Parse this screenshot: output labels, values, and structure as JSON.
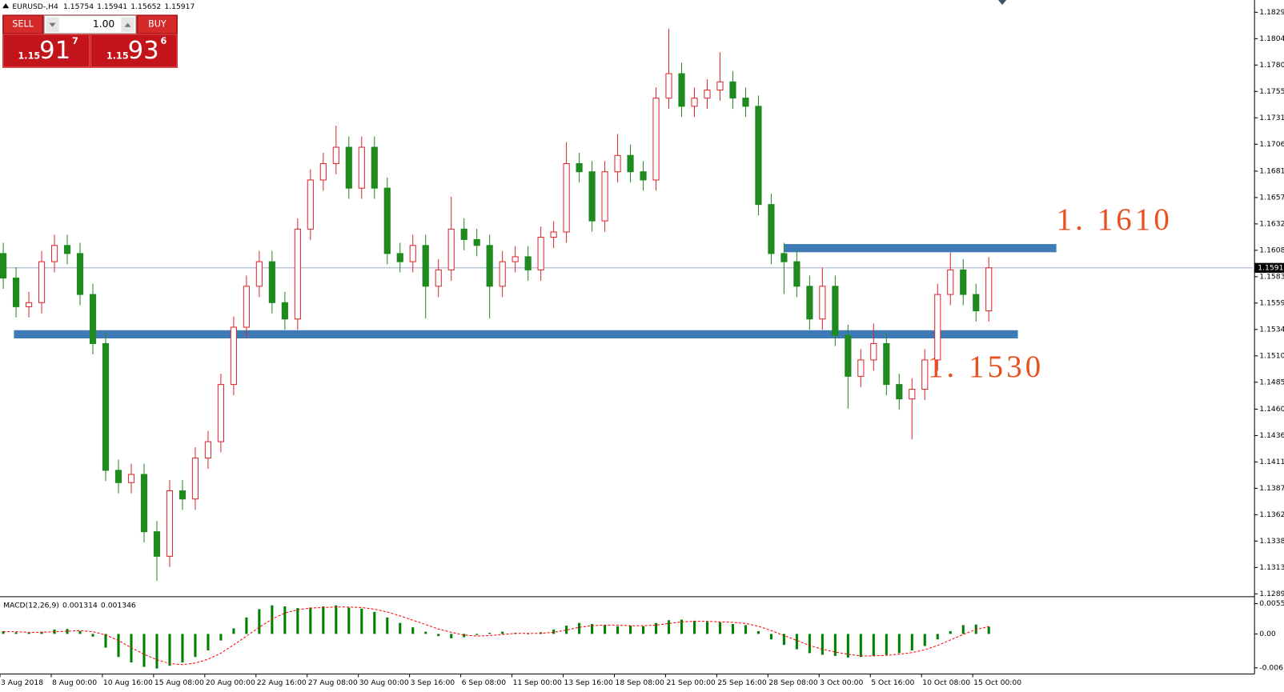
{
  "header": {
    "symbol": "EURUSD-,H4",
    "open": 1.15754,
    "high": 1.15941,
    "low": 1.15652,
    "close": 1.15917
  },
  "trade_panel": {
    "sell": "SELL",
    "buy": "BUY",
    "volume": "1.00",
    "bid": {
      "big_figure": "1.15",
      "pips": "91",
      "fraction": "7"
    },
    "ask": {
      "big_figure": "1.15",
      "pips": "93",
      "fraction": "6"
    }
  },
  "chart_data": [
    {
      "type": "candlestick",
      "categories": [
        "3 Aug 2018",
        null,
        null,
        null,
        "8 Aug 00:00",
        null,
        null,
        null,
        "10 Aug 16:00",
        null,
        null,
        null,
        "15 Aug 08:00",
        null,
        null,
        null,
        "20 Aug 00:00",
        null,
        null,
        null,
        "22 Aug 16:00",
        null,
        null,
        null,
        "27 Aug 08:00",
        null,
        null,
        null,
        "30 Aug 00:00",
        null,
        null,
        null,
        "3 Sep 16:00",
        null,
        null,
        null,
        "6 Sep 08:00",
        null,
        null,
        null,
        "11 Sep 00:00",
        null,
        null,
        null,
        "13 Sep 16:00",
        null,
        null,
        null,
        "18 Sep 08:00",
        null,
        null,
        null,
        "21 Sep 00:00",
        null,
        null,
        null,
        "25 Sep 16:00",
        null,
        null,
        null,
        "28 Sep 08:00",
        null,
        null,
        null,
        "3 Oct 00:00",
        null,
        null,
        null,
        "5 Oct 16:00",
        null,
        null,
        null,
        "10 Oct 08:00",
        null,
        null,
        null,
        "15 Oct 00:00",
        null
      ],
      "open": [
        1.1605,
        1.15822,
        1.15556,
        1.15594,
        1.15974,
        1.16125,
        1.1605,
        1.1567,
        1.15214,
        1.14037,
        1.13923,
        1.13999,
        1.13467,
        1.13239,
        1.13847,
        1.13771,
        1.14151,
        1.14303,
        1.14834,
        1.15366,
        1.15746,
        1.15974,
        1.15594,
        1.15442,
        1.16277,
        1.16733,
        1.16885,
        1.17037,
        1.16657,
        1.17037,
        1.16657,
        1.1605,
        1.15974,
        1.16125,
        1.15746,
        1.15898,
        1.16277,
        1.1618,
        1.16125,
        1.15746,
        1.15974,
        1.1602,
        1.15898,
        1.16201,
        1.1625,
        1.16885,
        1.16809,
        1.16353,
        1.16809,
        1.16961,
        1.16809,
        1.16733,
        1.17493,
        1.1772,
        1.17417,
        1.17493,
        1.17568,
        1.17644,
        1.17493,
        1.17417,
        1.16505,
        1.1605,
        1.15974,
        1.15746,
        1.15442,
        1.15746,
        1.1529,
        1.1491,
        1.15062,
        1.15214,
        1.14834,
        1.147,
        1.1479,
        1.15062,
        1.1567,
        1.15898,
        1.1567,
        1.15518
      ],
      "high": [
        1.1615,
        1.15922,
        1.15694,
        1.16074,
        1.16225,
        1.16225,
        1.1615,
        1.1577,
        1.15314,
        1.14137,
        1.14099,
        1.14099,
        1.13567,
        1.13947,
        1.13947,
        1.14251,
        1.14403,
        1.14934,
        1.15466,
        1.15846,
        1.16074,
        1.16074,
        1.15694,
        1.16377,
        1.16833,
        1.16985,
        1.17237,
        1.17137,
        1.17137,
        1.17137,
        1.16757,
        1.1615,
        1.16225,
        1.16225,
        1.15998,
        1.16577,
        1.16377,
        1.1628,
        1.16225,
        1.16074,
        1.1612,
        1.1612,
        1.16301,
        1.1635,
        1.17085,
        1.16985,
        1.16909,
        1.16909,
        1.17161,
        1.17061,
        1.16909,
        1.17593,
        1.18138,
        1.1782,
        1.17593,
        1.17668,
        1.1792,
        1.17744,
        1.17593,
        1.17517,
        1.16605,
        1.1615,
        1.16074,
        1.15846,
        1.1592,
        1.15846,
        1.1539,
        1.15162,
        1.154,
        1.15314,
        1.14934,
        1.1489,
        1.15162,
        1.1577,
        1.1606,
        1.15998,
        1.1577,
        1.16017
      ],
      "low": [
        1.15722,
        1.15456,
        1.15456,
        1.15494,
        1.15874,
        1.1595,
        1.1557,
        1.15114,
        1.13937,
        1.13823,
        1.13823,
        1.13367,
        1.13011,
        1.13139,
        1.13671,
        1.13671,
        1.14051,
        1.14203,
        1.14734,
        1.15266,
        1.15646,
        1.15494,
        1.15342,
        1.15342,
        1.16177,
        1.16633,
        1.16785,
        1.16557,
        1.16557,
        1.16557,
        1.1595,
        1.15874,
        1.15874,
        1.15446,
        1.15646,
        1.15798,
        1.1608,
        1.16025,
        1.15446,
        1.15646,
        1.15874,
        1.15798,
        1.15798,
        1.16101,
        1.1615,
        1.16709,
        1.16253,
        1.16253,
        1.16709,
        1.16709,
        1.16633,
        1.16633,
        1.17393,
        1.17317,
        1.17317,
        1.17393,
        1.17468,
        1.17393,
        1.17317,
        1.16405,
        1.1595,
        1.15674,
        1.15646,
        1.15342,
        1.15342,
        1.1519,
        1.1461,
        1.1481,
        1.14962,
        1.14734,
        1.146,
        1.14325,
        1.1469,
        1.14962,
        1.1557,
        1.1557,
        1.15418,
        1.15418
      ],
      "close": [
        1.15822,
        1.15556,
        1.15594,
        1.15974,
        1.16125,
        1.1605,
        1.1567,
        1.15214,
        1.14037,
        1.13923,
        1.13999,
        1.13467,
        1.13239,
        1.13847,
        1.13771,
        1.14151,
        1.14303,
        1.14834,
        1.15366,
        1.15746,
        1.15974,
        1.15594,
        1.15442,
        1.16277,
        1.16733,
        1.16885,
        1.17037,
        1.16657,
        1.17037,
        1.16657,
        1.1605,
        1.15974,
        1.16125,
        1.15746,
        1.15898,
        1.16277,
        1.1618,
        1.16125,
        1.15746,
        1.15974,
        1.1602,
        1.15898,
        1.16201,
        1.1625,
        1.16885,
        1.16809,
        1.16353,
        1.16809,
        1.16961,
        1.16809,
        1.16733,
        1.17493,
        1.1772,
        1.17417,
        1.17493,
        1.17568,
        1.17644,
        1.17493,
        1.17417,
        1.16505,
        1.1605,
        1.15974,
        1.15746,
        1.15442,
        1.15746,
        1.1529,
        1.1491,
        1.15062,
        1.15214,
        1.14834,
        1.147,
        1.1479,
        1.15062,
        1.1567,
        1.15898,
        1.1567,
        1.15518,
        1.15917
      ],
      "up_color": "#e0242b",
      "down_color": "#1f8a1f",
      "ylim": [
        1.12875,
        1.18404
      ],
      "yticks": [
        {
          "value": 1.1829,
          "label": "1.18290"
        },
        1.18045,
        {
          "value": 1.178,
          "label": "1.17800"
        },
        1.17555,
        {
          "value": 1.1731,
          "label": "1.17310"
        },
        1.17065,
        1.16815,
        {
          "value": 1.1657,
          "label": "1.16570"
        },
        1.16325,
        {
          "value": 1.1608,
          "label": "1.16080"
        },
        1.15835,
        {
          "value": 1.1559,
          "label": "1.15590"
        },
        1.15345,
        {
          "value": 1.151,
          "label": "1.15100"
        },
        1.14855,
        1.14605,
        {
          "value": 1.1436,
          "label": "1.14360"
        },
        1.14115,
        {
          "value": 1.1387,
          "label": "1.13870"
        },
        1.13625,
        {
          "value": 1.1338,
          "label": "1.13380"
        },
        1.13135,
        {
          "value": 1.1289,
          "label": "1.12890"
        }
      ],
      "current_price": 1.15917,
      "levels": [
        {
          "value": 1.161,
          "label": "1. 1610"
        },
        {
          "value": 1.153,
          "label": "1. 1530"
        }
      ],
      "level_color": "#3e7bb6"
    },
    {
      "type": "macd",
      "title": "MACD(12,26,9)",
      "macd": [
        0.0005,
        0.0003,
        0.0002,
        0.0004,
        0.0008,
        0.0009,
        0.0005,
        -0.0005,
        -0.0025,
        -0.0042,
        -0.0052,
        -0.006,
        -0.0063,
        -0.0058,
        -0.0052,
        -0.0042,
        -0.003,
        -0.0012,
        0.001,
        0.003,
        0.0045,
        0.0052,
        0.005,
        0.0047,
        0.0048,
        0.005,
        0.0052,
        0.0048,
        0.0046,
        0.004,
        0.003,
        0.002,
        0.0012,
        0.0004,
        -0.0004,
        -0.0008,
        -0.0006,
        -0.0002,
        0.0002,
        0.0004,
        0.0002,
        0.0,
        0.0003,
        0.0008,
        0.0015,
        0.002,
        0.0018,
        0.0016,
        0.0014,
        0.0015,
        0.0014,
        0.002,
        0.0025,
        0.0026,
        0.0024,
        0.0022,
        0.0021,
        0.0018,
        0.0016,
        0.0005,
        -0.001,
        -0.002,
        -0.0028,
        -0.0035,
        -0.0038,
        -0.004,
        -0.0043,
        -0.0042,
        -0.004,
        -0.0038,
        -0.0035,
        -0.003,
        -0.0022,
        -0.001,
        0.0005,
        0.0016,
        0.0017,
        0.001314
      ],
      "signal": [
        0.0004,
        0.0004,
        0.0003,
        0.0003,
        0.0004,
        0.0005,
        0.0006,
        0.0004,
        -0.0002,
        -0.0012,
        -0.0025,
        -0.0037,
        -0.0047,
        -0.0054,
        -0.0056,
        -0.0053,
        -0.0046,
        -0.0035,
        -0.002,
        -0.0004,
        0.0012,
        0.0027,
        0.0038,
        0.0044,
        0.0047,
        0.0048,
        0.0049,
        0.0049,
        0.0048,
        0.0045,
        0.004,
        0.0033,
        0.0025,
        0.0017,
        0.0009,
        0.0003,
        -0.0002,
        -0.0004,
        -0.0003,
        -0.0001,
        0.0001,
        0.0001,
        0.0001,
        0.0003,
        0.0007,
        0.0012,
        0.0015,
        0.0016,
        0.0016,
        0.0015,
        0.0015,
        0.0016,
        0.0019,
        0.0022,
        0.0023,
        0.0023,
        0.0022,
        0.0021,
        0.0019,
        0.0014,
        0.0006,
        -0.0003,
        -0.0012,
        -0.0021,
        -0.0028,
        -0.0033,
        -0.0037,
        -0.004,
        -0.004,
        -0.0039,
        -0.0037,
        -0.0034,
        -0.0029,
        -0.0021,
        -0.0011,
        -0.0001,
        0.0008,
        0.001346
      ],
      "macd_color": "#008000",
      "signal_color": "#ff0000",
      "ylim": [
        -0.007,
        0.0064
      ],
      "yticks": [
        0.00551,
        {
          "value": 0,
          "label": "0.00"
        },
        -0.00618
      ]
    }
  ]
}
